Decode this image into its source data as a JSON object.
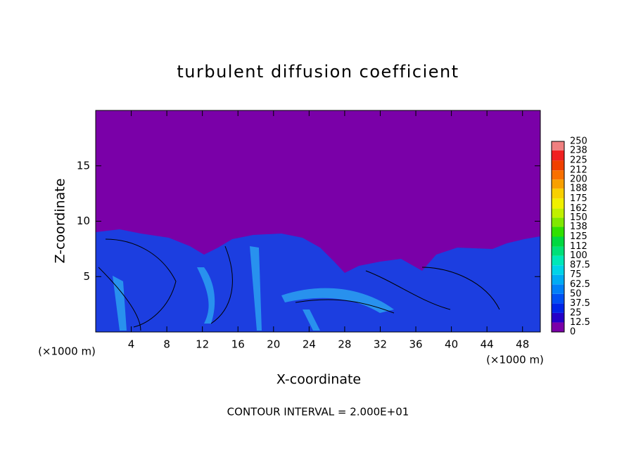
{
  "chart_data": {
    "type": "contour",
    "title": "turbulent diffusion coefficient",
    "xlabel": "X-coordinate",
    "ylabel": "Z-coordinate",
    "x_unit_label": "(×1000 m)",
    "y_unit_label": "(×1000 m)",
    "footer": "CONTOUR INTERVAL = 2.000E+01",
    "xlim": [
      0,
      50
    ],
    "xticks": [
      4,
      8,
      12,
      16,
      20,
      24,
      28,
      32,
      36,
      40,
      44,
      48
    ],
    "ylim": [
      0,
      20
    ],
    "yticks": [
      5,
      10,
      15
    ],
    "colorbar": {
      "levels": [
        0,
        12.5,
        25,
        37.5,
        50,
        62.5,
        75,
        87.5,
        100,
        112,
        125,
        138,
        150,
        162,
        175,
        188,
        200,
        212,
        225,
        238,
        250
      ],
      "colors": [
        "#7a00a8",
        "#2400c8",
        "#0024e8",
        "#0050f4",
        "#0080f8",
        "#00acf4",
        "#00d4e8",
        "#00e8b8",
        "#00e078",
        "#00d840",
        "#30e000",
        "#80e800",
        "#c0f000",
        "#f0f000",
        "#f8d000",
        "#f8a000",
        "#f87000",
        "#f04000",
        "#f02020",
        "#f08080"
      ]
    }
  }
}
